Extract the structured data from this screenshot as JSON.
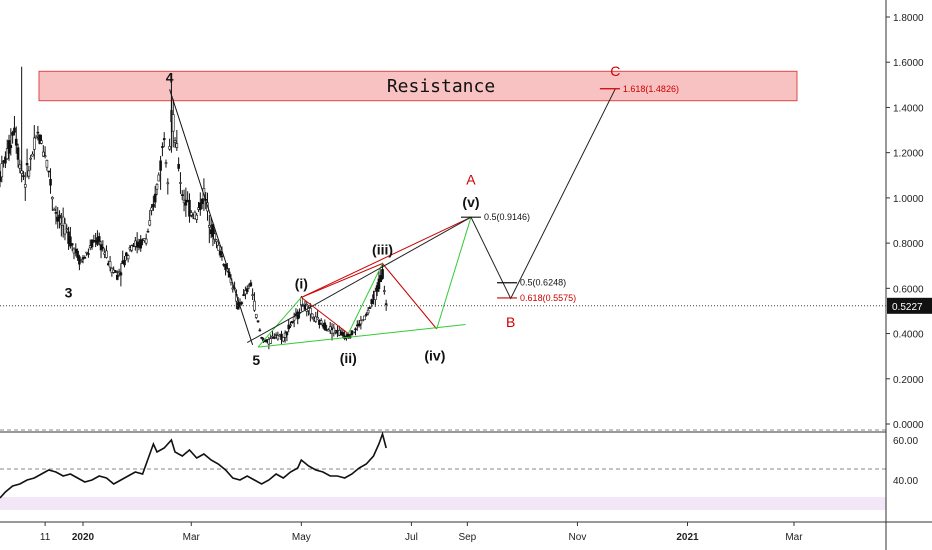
{
  "chart_data": {
    "type": "candlestick",
    "price_axis": {
      "ylim": [
        0.0,
        1.8
      ],
      "ticks": [
        "0.0000",
        "0.2000",
        "0.4000",
        "0.6000",
        "0.8000",
        "1.0000",
        "1.2000",
        "1.4000",
        "1.6000",
        "1.8000"
      ],
      "tick_values": [
        0.0,
        0.2,
        0.4,
        0.6,
        0.8,
        1.0,
        1.2,
        1.4,
        1.6,
        1.8
      ]
    },
    "rsi_axis": {
      "ticks": [
        "40.00",
        "60.00"
      ],
      "tick_values": [
        40,
        60
      ],
      "ylim": [
        22,
        64
      ],
      "upper_band": 70,
      "lower_band": 30
    },
    "time_axis": {
      "labels": [
        "11",
        "2020",
        "Mar",
        "May",
        "Jul",
        "Sep",
        "Nov",
        "2021",
        "Mar"
      ],
      "label_days": [
        10,
        31,
        91,
        152,
        213,
        244,
        305,
        366,
        425
      ],
      "xlim": [
        -15,
        476
      ]
    },
    "current_price": {
      "label": "0.5227",
      "value": 0.5227
    },
    "resistance": {
      "label": "Resistance",
      "low": 1.43,
      "high": 1.56
    },
    "wave_labels": [
      {
        "text": "3",
        "day": 23,
        "price": 0.56
      },
      {
        "text": "4",
        "day": 79,
        "price": 1.51
      },
      {
        "text": "5",
        "day": 127,
        "price": 0.26
      },
      {
        "text": "(i)",
        "day": 152,
        "price": 0.6
      },
      {
        "text": "(ii)",
        "day": 178,
        "price": 0.27
      },
      {
        "text": "(iii)",
        "day": 197,
        "price": 0.75
      },
      {
        "text": "(iv)",
        "day": 226,
        "price": 0.28
      },
      {
        "text": "(v)",
        "day": 246,
        "price": 0.96
      }
    ],
    "abc_labels": [
      {
        "text": "A",
        "day": 246,
        "price": 1.06
      },
      {
        "text": "B",
        "day": 268,
        "price": 0.43
      },
      {
        "text": "C",
        "day": 326,
        "price": 1.54
      }
    ],
    "fib_levels": [
      {
        "label": "0.5(0.9146)",
        "price": 0.9146,
        "day": 246,
        "color": "#111111"
      },
      {
        "label": "0.5(0.6248)",
        "price": 0.6248,
        "day": 266,
        "color": "#111111"
      },
      {
        "label": "0.618(0.5575)",
        "price": 0.5575,
        "day": 266,
        "color": "#cc0000"
      },
      {
        "label": "1.618(1.4826)",
        "price": 1.4826,
        "day": 323,
        "color": "#cc0000"
      }
    ],
    "projection_path": [
      {
        "day": 122,
        "price": 0.36
      },
      {
        "day": 246,
        "price": 0.9146
      },
      {
        "day": 268,
        "price": 0.555
      },
      {
        "day": 326,
        "price": 1.4826
      }
    ],
    "impulse_lines": [
      {
        "color": "#111111",
        "points": [
          [
            79,
            1.48
          ],
          [
            125,
            0.35
          ]
        ]
      },
      {
        "color": "#cc0000",
        "points": [
          [
            152,
            0.56
          ],
          [
            197,
            0.71
          ]
        ]
      },
      {
        "color": "#cc0000",
        "points": [
          [
            152,
            0.56
          ],
          [
            178,
            0.4
          ]
        ]
      },
      {
        "color": "#cc0000",
        "points": [
          [
            197,
            0.71
          ],
          [
            227,
            0.42
          ]
        ]
      },
      {
        "color": "#cc0000",
        "points": [
          [
            152,
            0.56
          ],
          [
            246,
            0.9146
          ]
        ]
      },
      {
        "color": "#33cc33",
        "points": [
          [
            128,
            0.34
          ],
          [
            152,
            0.56
          ]
        ]
      },
      {
        "color": "#33cc33",
        "points": [
          [
            178,
            0.4
          ],
          [
            197,
            0.71
          ]
        ]
      },
      {
        "color": "#33cc33",
        "points": [
          [
            227,
            0.42
          ],
          [
            246,
            0.9146
          ]
        ]
      },
      {
        "color": "#33cc33",
        "points": [
          [
            128,
            0.34
          ],
          [
            243,
            0.44
          ]
        ]
      }
    ],
    "price_path": [
      [
        -15,
        1.1
      ],
      [
        -10,
        1.22
      ],
      [
        -7,
        1.32
      ],
      [
        -4,
        1.15
      ],
      [
        -1,
        1.08
      ],
      [
        2,
        1.16
      ],
      [
        6,
        1.28
      ],
      [
        10,
        1.2
      ],
      [
        12,
        1.12
      ],
      [
        15,
        0.96
      ],
      [
        18,
        0.9
      ],
      [
        22,
        0.85
      ],
      [
        26,
        0.78
      ],
      [
        30,
        0.72
      ],
      [
        34,
        0.76
      ],
      [
        38,
        0.82
      ],
      [
        42,
        0.78
      ],
      [
        46,
        0.7
      ],
      [
        50,
        0.66
      ],
      [
        54,
        0.72
      ],
      [
        58,
        0.8
      ],
      [
        62,
        0.79
      ],
      [
        66,
        0.82
      ],
      [
        70,
        0.95
      ],
      [
        74,
        1.15
      ],
      [
        76,
        1.28
      ],
      [
        78,
        1.12
      ],
      [
        80,
        1.38
      ],
      [
        83,
        1.2
      ],
      [
        86,
        1.02
      ],
      [
        90,
        0.95
      ],
      [
        94,
        0.92
      ],
      [
        98,
        1.02
      ],
      [
        102,
        0.88
      ],
      [
        106,
        0.78
      ],
      [
        110,
        0.7
      ],
      [
        114,
        0.62
      ],
      [
        117,
        0.52
      ],
      [
        120,
        0.56
      ],
      [
        124,
        0.62
      ],
      [
        127,
        0.48
      ],
      [
        130,
        0.38
      ],
      [
        134,
        0.36
      ],
      [
        138,
        0.4
      ],
      [
        142,
        0.38
      ],
      [
        146,
        0.44
      ],
      [
        150,
        0.48
      ],
      [
        152,
        0.54
      ],
      [
        156,
        0.5
      ],
      [
        160,
        0.46
      ],
      [
        164,
        0.44
      ],
      [
        168,
        0.42
      ],
      [
        172,
        0.41
      ],
      [
        176,
        0.39
      ],
      [
        180,
        0.4
      ],
      [
        184,
        0.44
      ],
      [
        188,
        0.48
      ],
      [
        192,
        0.55
      ],
      [
        195,
        0.62
      ],
      [
        197,
        0.67
      ],
      [
        199,
        0.5227
      ]
    ],
    "rsi_path": [
      [
        -15,
        31
      ],
      [
        -12,
        34
      ],
      [
        -8,
        37
      ],
      [
        -4,
        38
      ],
      [
        0,
        40
      ],
      [
        4,
        41
      ],
      [
        8,
        43
      ],
      [
        12,
        45
      ],
      [
        16,
        44
      ],
      [
        20,
        42
      ],
      [
        24,
        43
      ],
      [
        28,
        41
      ],
      [
        32,
        39
      ],
      [
        36,
        40
      ],
      [
        40,
        42
      ],
      [
        44,
        41
      ],
      [
        48,
        38
      ],
      [
        52,
        40
      ],
      [
        56,
        42
      ],
      [
        60,
        44
      ],
      [
        64,
        43
      ],
      [
        66,
        48
      ],
      [
        70,
        58
      ],
      [
        72,
        54
      ],
      [
        76,
        56
      ],
      [
        80,
        60
      ],
      [
        82,
        54
      ],
      [
        86,
        52
      ],
      [
        90,
        55
      ],
      [
        94,
        51
      ],
      [
        98,
        53
      ],
      [
        102,
        50
      ],
      [
        106,
        48
      ],
      [
        110,
        45
      ],
      [
        114,
        41
      ],
      [
        118,
        40
      ],
      [
        122,
        42
      ],
      [
        126,
        40
      ],
      [
        130,
        38
      ],
      [
        134,
        40
      ],
      [
        138,
        43
      ],
      [
        142,
        41
      ],
      [
        146,
        44
      ],
      [
        150,
        46
      ],
      [
        152,
        50
      ],
      [
        156,
        47
      ],
      [
        160,
        45
      ],
      [
        164,
        44
      ],
      [
        168,
        42
      ],
      [
        172,
        42
      ],
      [
        176,
        41
      ],
      [
        180,
        43
      ],
      [
        184,
        46
      ],
      [
        188,
        48
      ],
      [
        192,
        52
      ],
      [
        195,
        58
      ],
      [
        197,
        64
      ],
      [
        199,
        56
      ]
    ]
  }
}
